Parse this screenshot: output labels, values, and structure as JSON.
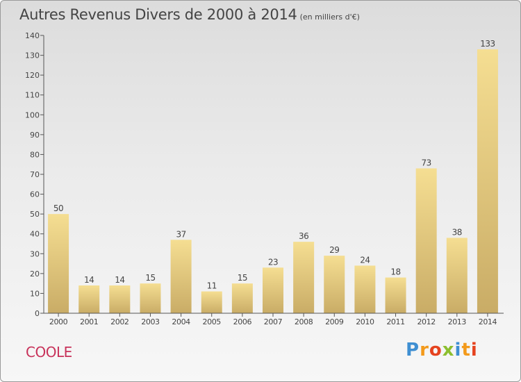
{
  "title": "Autres Revenus Divers de 2000 à 2014",
  "subtitle": "(en milliers d'€)",
  "commune": "COOLE",
  "logo": {
    "text": "Proxiti",
    "colors": [
      "#3f8fd2",
      "#f39a1b",
      "#e5431f",
      "#8cbf2f"
    ]
  },
  "colors": {
    "bar_top": "#f5de92",
    "bar_bottom": "#c9ac66",
    "commune_text": "#c8325a",
    "title_text": "#444444"
  },
  "chart_data": {
    "type": "bar",
    "categories": [
      "2000",
      "2001",
      "2002",
      "2003",
      "2004",
      "2005",
      "2006",
      "2007",
      "2008",
      "2009",
      "2010",
      "2011",
      "2012",
      "2013",
      "2014"
    ],
    "values": [
      50,
      14,
      14,
      15,
      37,
      11,
      15,
      23,
      36,
      29,
      24,
      18,
      73,
      38,
      133
    ],
    "value_labels": [
      "50",
      "14",
      "14",
      "15",
      "37",
      "11",
      "15",
      "23",
      "36",
      "29",
      "24",
      "18",
      "73",
      "38",
      "133"
    ],
    "ylim": [
      0,
      140
    ],
    "yticks": [
      0,
      10,
      20,
      30,
      40,
      50,
      60,
      70,
      80,
      90,
      100,
      110,
      120,
      130,
      140
    ],
    "grid": false,
    "legend": "none"
  }
}
